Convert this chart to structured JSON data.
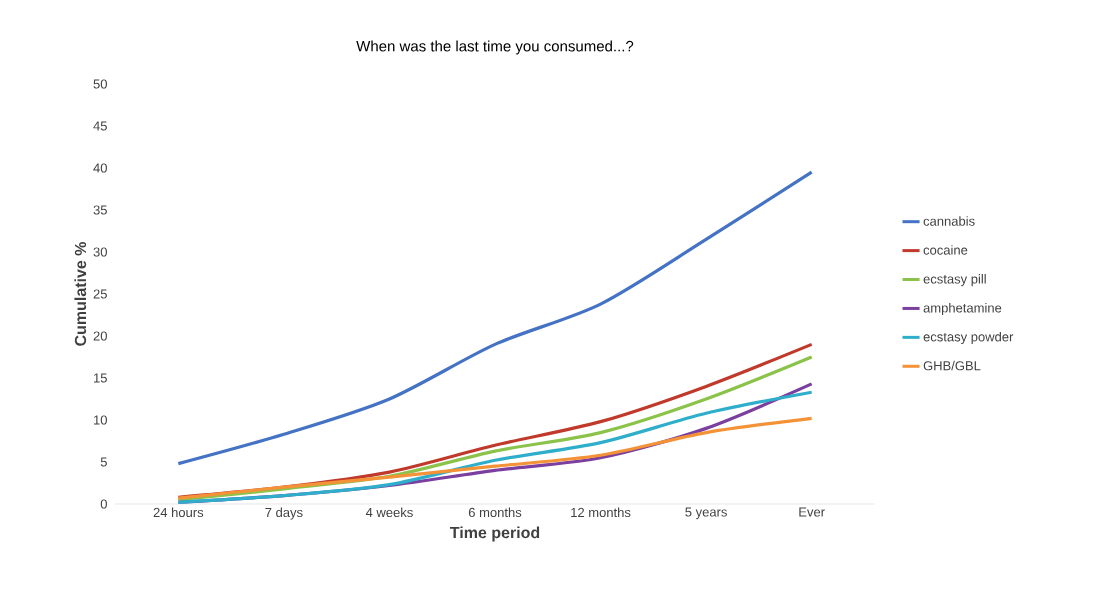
{
  "chart_data": {
    "type": "line",
    "title": "When was the last time you consumed...?",
    "xlabel": "Time period",
    "ylabel": "Cumulative %",
    "categories": [
      "24 hours",
      "7 days",
      "4 weeks",
      "6 months",
      "12 months",
      "5 years",
      "Ever"
    ],
    "ylim": [
      0,
      50
    ],
    "yticks": [
      0,
      5,
      10,
      15,
      20,
      25,
      30,
      35,
      40,
      45,
      50
    ],
    "legend": "right",
    "marker": "none",
    "line_style": "solid",
    "series": [
      {
        "name": "cannabis",
        "color": "#4472c4",
        "values": [
          4.8,
          8.3,
          12.5,
          19,
          23.8,
          31.5,
          39.5
        ]
      },
      {
        "name": "cocaine",
        "color": "#c0392b",
        "values": [
          0.8,
          2,
          3.8,
          7,
          9.8,
          14,
          19
        ]
      },
      {
        "name": "ecstasy pill",
        "color": "#8bc34a",
        "values": [
          0.5,
          1.8,
          3.3,
          6.3,
          8.5,
          12.5,
          17.5
        ]
      },
      {
        "name": "amphetamine",
        "color": "#7b3fa0",
        "values": [
          0.2,
          1,
          2.2,
          4,
          5.5,
          9,
          14.3
        ]
      },
      {
        "name": "ecstasy powder",
        "color": "#2eaecb",
        "values": [
          0.2,
          1,
          2.3,
          5.2,
          7.3,
          10.8,
          13.3
        ]
      },
      {
        "name": "GHB/GBL",
        "color": "#f39237",
        "values": [
          0.7,
          2,
          3.2,
          4.5,
          5.8,
          8.5,
          10.2
        ]
      }
    ]
  }
}
